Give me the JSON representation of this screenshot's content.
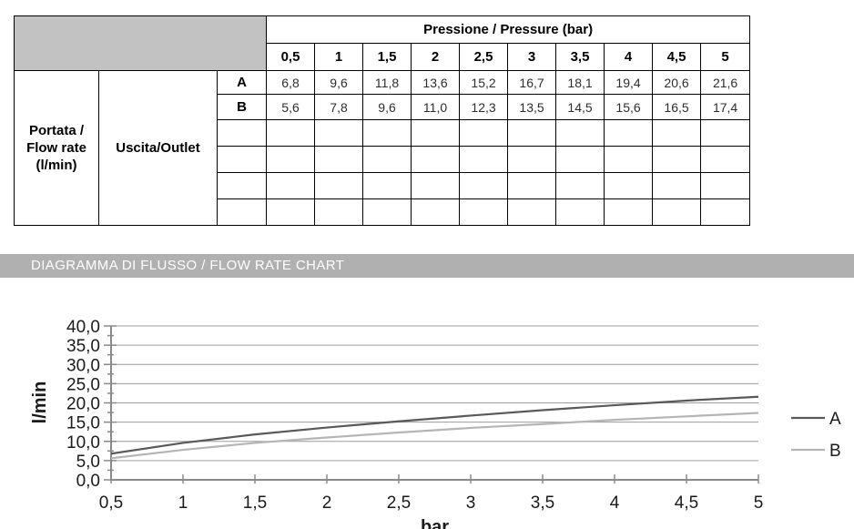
{
  "table": {
    "pressure_header": "Pressione / Pressure (bar)",
    "pressures": [
      "0,5",
      "1",
      "1,5",
      "2",
      "2,5",
      "3",
      "3,5",
      "4",
      "4,5",
      "5"
    ],
    "flow_label": "Portata / Flow rate (l/min)",
    "outlet_label": "Uscita/Outlet",
    "rows": [
      {
        "label": "A",
        "values": [
          "6,8",
          "9,6",
          "11,8",
          "13,6",
          "15,2",
          "16,7",
          "18,1",
          "19,4",
          "20,6",
          "21,6"
        ]
      },
      {
        "label": "B",
        "values": [
          "5,6",
          "7,8",
          "9,6",
          "11,0",
          "12,3",
          "13,5",
          "14,5",
          "15,6",
          "16,5",
          "17,4"
        ]
      }
    ]
  },
  "banner": {
    "title": "DIAGRAMMA DI FLUSSO / FLOW RATE CHART",
    "background": "#b0b0b0"
  },
  "colors": {
    "table_corner_gray": "#c2c2c2",
    "grid_gray": "#9c9c9c",
    "axis_gray": "#8a8a8a",
    "text_dark": "#1a1a1a"
  },
  "chart_data": {
    "type": "line",
    "title": "",
    "xlabel": "bar",
    "ylabel": "l/min",
    "x": [
      0.5,
      1,
      1.5,
      2,
      2.5,
      3,
      3.5,
      4,
      4.5,
      5
    ],
    "x_tick_labels": [
      "0,5",
      "1",
      "1,5",
      "2",
      "2,5",
      "3",
      "3,5",
      "4",
      "4,5",
      "5"
    ],
    "ylim": [
      0,
      40
    ],
    "y_tick_step": 5,
    "y_minor_step": 2.5,
    "y_tick_labels": [
      "0,0",
      "5,0",
      "10,0",
      "15,0",
      "20,0",
      "25,0",
      "30,0",
      "35,0",
      "40,0"
    ],
    "grid": true,
    "legend_position": "right",
    "series": [
      {
        "name": "A",
        "color": "#595959",
        "values": [
          6.8,
          9.6,
          11.8,
          13.6,
          15.2,
          16.7,
          18.1,
          19.4,
          20.6,
          21.6
        ]
      },
      {
        "name": "B",
        "color": "#b5b5b5",
        "values": [
          5.6,
          7.8,
          9.6,
          11.0,
          12.3,
          13.5,
          14.5,
          15.6,
          16.5,
          17.4
        ]
      }
    ]
  }
}
